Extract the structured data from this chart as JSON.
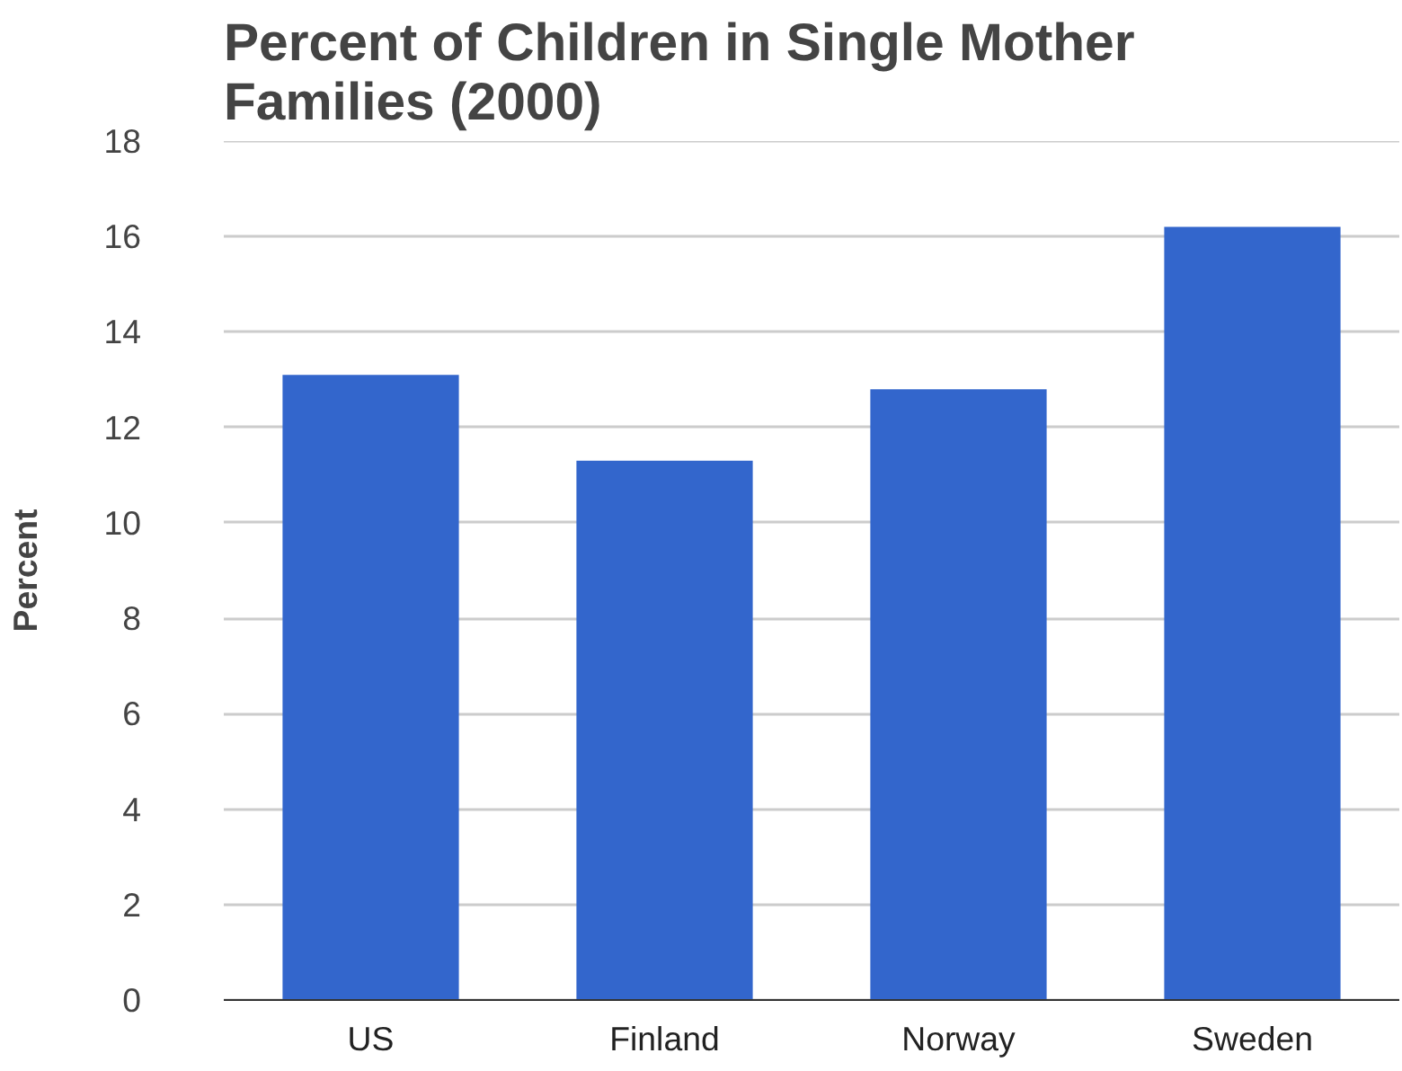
{
  "chart_data": {
    "type": "bar",
    "title": "Percent of Children in Single Mother Families (2000)",
    "ylabel": "Percent",
    "categories": [
      "US",
      "Finland",
      "Norway",
      "Sweden"
    ],
    "series": [
      {
        "color": "#3366cc",
        "values": [
          13.1,
          11.3,
          12.8,
          16.2
        ]
      }
    ],
    "ylim": [
      0,
      18
    ],
    "yticks": [
      0,
      2,
      4,
      6,
      8,
      10,
      12,
      14,
      16,
      18
    ],
    "grid": "y"
  }
}
